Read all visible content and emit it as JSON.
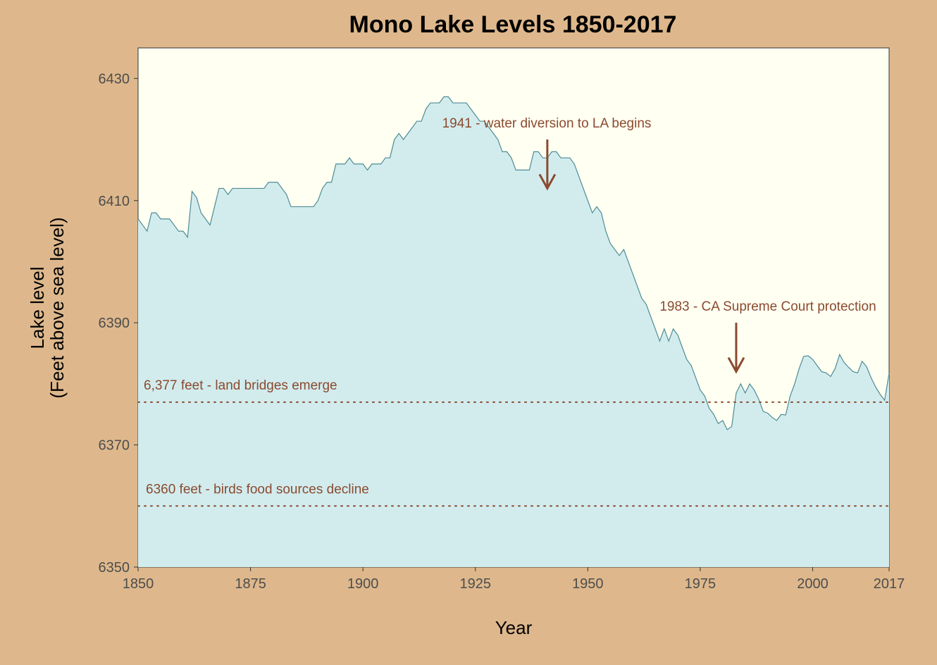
{
  "chart_data": {
    "type": "area",
    "title": "Mono Lake Levels 1850-2017",
    "xlabel": "Year",
    "ylabel_line1": "Lake level",
    "ylabel_line2": "(Feet above sea level)",
    "xlim": [
      1850,
      2017
    ],
    "ylim": [
      6350,
      6435
    ],
    "x_ticks": [
      1850,
      1875,
      1900,
      1925,
      1950,
      1975,
      2000,
      2017
    ],
    "y_ticks": [
      6350,
      6370,
      6390,
      6410,
      6430
    ],
    "grid": false,
    "colors": {
      "background": "#DEB88C",
      "panel": "#FFFFF2",
      "fill": "#D2ECEE",
      "line": "#4D8C94",
      "annotation": "#8B4A2F"
    },
    "series": [
      {
        "x": [
          1850,
          1851,
          1852,
          1853,
          1854,
          1855,
          1856,
          1857,
          1858,
          1859,
          1860,
          1861,
          1862,
          1863,
          1864,
          1865,
          1866,
          1867,
          1868,
          1869,
          1870,
          1871,
          1872,
          1873,
          1874,
          1875,
          1876,
          1877,
          1878,
          1879,
          1880,
          1881,
          1882,
          1883,
          1884,
          1885,
          1886,
          1887,
          1888,
          1889,
          1890,
          1891,
          1892,
          1893,
          1894,
          1895,
          1896,
          1897,
          1898,
          1899,
          1900,
          1901,
          1902,
          1903,
          1904,
          1905,
          1906,
          1907,
          1908,
          1909,
          1910,
          1911,
          1912,
          1913,
          1914,
          1915,
          1916,
          1917,
          1918,
          1919,
          1920,
          1921,
          1922,
          1923,
          1924,
          1925,
          1926,
          1927,
          1928,
          1929,
          1930,
          1931,
          1932,
          1933,
          1934,
          1935,
          1936,
          1937,
          1938,
          1939,
          1940,
          1941,
          1942,
          1943,
          1944,
          1945,
          1946,
          1947,
          1948,
          1949,
          1950,
          1951,
          1952,
          1953,
          1954,
          1955,
          1956,
          1957,
          1958,
          1959,
          1960,
          1961,
          1962,
          1963,
          1964,
          1965,
          1966,
          1967,
          1968,
          1969,
          1970,
          1971,
          1972,
          1973,
          1974,
          1975,
          1976,
          1977,
          1978,
          1979,
          1980,
          1981,
          1982,
          1983,
          1984,
          1985,
          1986,
          1987,
          1988,
          1989,
          1990,
          1991,
          1992,
          1993,
          1994,
          1995,
          1996,
          1997,
          1998,
          1999,
          2000,
          2001,
          2002,
          2003,
          2004,
          2005,
          2006,
          2007,
          2008,
          2009,
          2010,
          2011,
          2012,
          2013,
          2014,
          2015,
          2016,
          2017
        ],
        "y": [
          6407,
          6406,
          6405,
          6408,
          6408,
          6407,
          6407,
          6407,
          6406,
          6405,
          6405,
          6404,
          6411.5,
          6410.5,
          6408,
          6407,
          6406,
          6409,
          6412,
          6412,
          6411,
          6412,
          6412,
          6412,
          6412,
          6412,
          6412,
          6412,
          6412,
          6413,
          6413,
          6413,
          6412,
          6411,
          6409,
          6409,
          6409,
          6409,
          6409,
          6409,
          6410,
          6412,
          6413,
          6413,
          6416,
          6416,
          6416,
          6417,
          6416,
          6416,
          6416,
          6415,
          6416,
          6416,
          6416,
          6417,
          6417,
          6420,
          6421,
          6420,
          6421,
          6422,
          6423,
          6423,
          6425,
          6426,
          6426,
          6426,
          6427,
          6427,
          6426,
          6426,
          6426,
          6426,
          6425,
          6424,
          6423,
          6423,
          6422,
          6421,
          6420,
          6418,
          6418,
          6417,
          6415,
          6415,
          6415,
          6415,
          6418,
          6418,
          6417,
          6417,
          6418,
          6418,
          6417,
          6417,
          6417,
          6416,
          6414,
          6412,
          6410,
          6408,
          6409,
          6408,
          6405,
          6403,
          6402,
          6401,
          6402,
          6400,
          6398,
          6396,
          6394,
          6393,
          6391,
          6389,
          6387,
          6389,
          6387,
          6389,
          6388,
          6386,
          6384,
          6383,
          6381,
          6379,
          6378,
          6376,
          6375,
          6373.5,
          6374,
          6372.5,
          6373,
          6378.5,
          6380,
          6378.5,
          6380,
          6379,
          6377.5,
          6375.5,
          6375.2,
          6374.5,
          6374,
          6375,
          6374.9,
          6378,
          6380,
          6382.5,
          6384.5,
          6384.6,
          6384,
          6383,
          6382,
          6381.8,
          6381.2,
          6382.5,
          6384.8,
          6383.5,
          6382.7,
          6382,
          6381.8,
          6383.7,
          6382.8,
          6381,
          6379.5,
          6378.3,
          6377.3,
          6381.7
        ]
      }
    ],
    "reference_lines": [
      {
        "y": 6377,
        "label": "6,377 feet - land bridges emerge"
      },
      {
        "y": 6360,
        "label": "6360 feet - birds food sources decline"
      }
    ],
    "annotations": [
      {
        "x": 1941,
        "label": "1941 - water diversion to LA begins",
        "arrow_from": 6420,
        "arrow_to": 6412
      },
      {
        "x": 1983,
        "label": "1983 - CA Supreme Court protection",
        "arrow_from": 6390,
        "arrow_to": 6382
      }
    ]
  }
}
